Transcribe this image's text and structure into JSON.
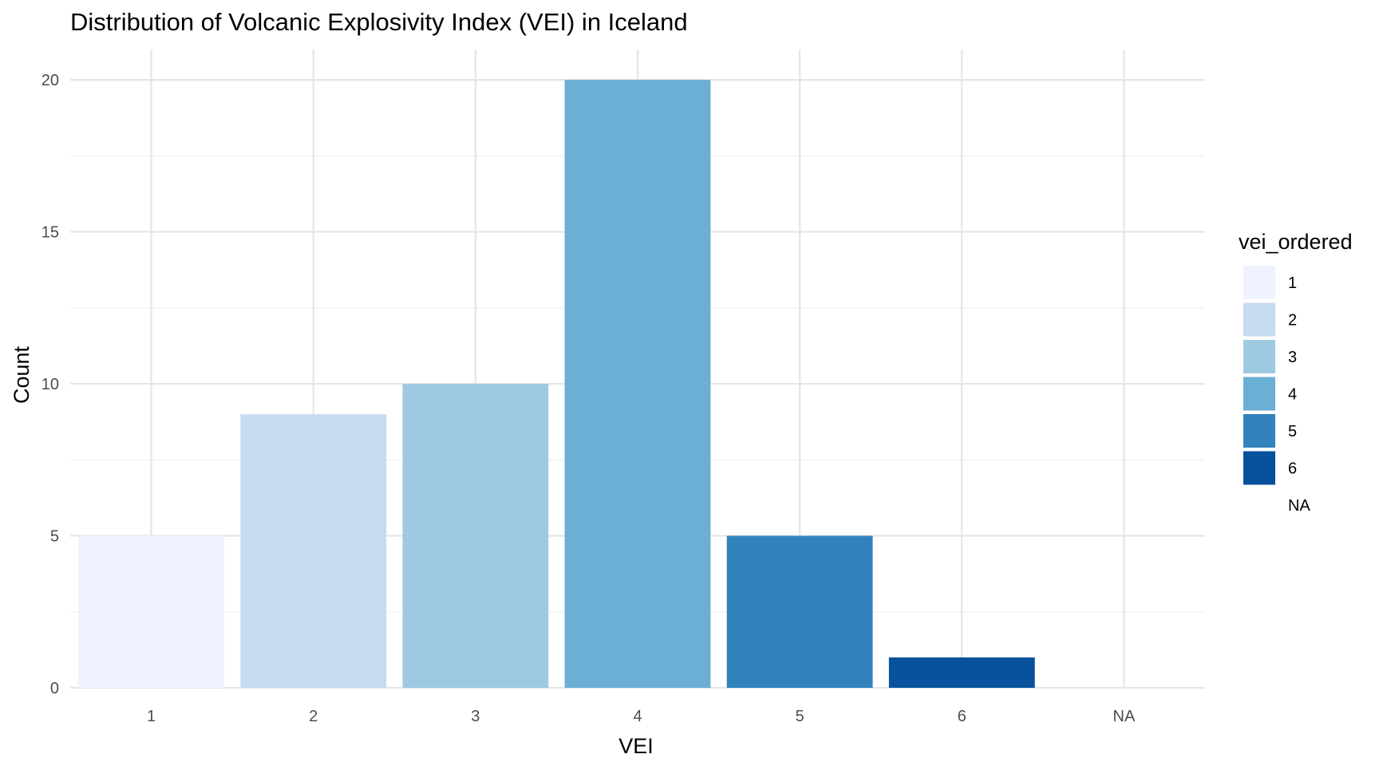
{
  "chart_data": {
    "type": "bar",
    "title": "Distribution of Volcanic Explosivity Index (VEI) in Iceland",
    "xlabel": "VEI",
    "ylabel": "Count",
    "categories": [
      "1",
      "2",
      "3",
      "4",
      "5",
      "6",
      "NA"
    ],
    "values": [
      5,
      9,
      10,
      20,
      5,
      1,
      0
    ],
    "ylim": [
      0,
      21
    ],
    "yticks": [
      0,
      5,
      10,
      15,
      20
    ],
    "grid": true,
    "legend": {
      "title": "vei_ordered",
      "placement": "right",
      "items": [
        {
          "label": "1",
          "color": "#EFF3FF"
        },
        {
          "label": "2",
          "color": "#C6DBEF"
        },
        {
          "label": "3",
          "color": "#9ECAE1"
        },
        {
          "label": "4",
          "color": "#6BAED6"
        },
        {
          "label": "5",
          "color": "#3182BD"
        },
        {
          "label": "6",
          "color": "#08519C"
        },
        {
          "label": "NA",
          "color": null
        }
      ]
    }
  }
}
